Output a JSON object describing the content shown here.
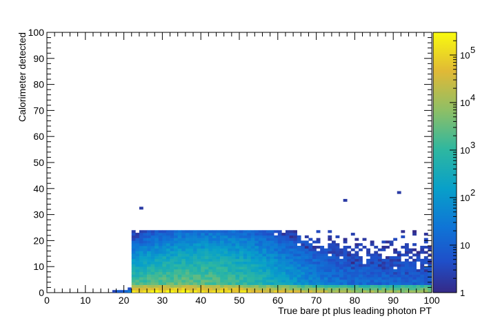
{
  "chart_data": {
    "type": "heatmap",
    "title": "",
    "xlabel": "True bare pt plus leading photon PT",
    "ylabel": "Calorimeter detected",
    "xlim": [
      0,
      100
    ],
    "ylim": [
      0,
      100
    ],
    "x_ticks": [
      "0",
      "10",
      "20",
      "30",
      "40",
      "50",
      "60",
      "70",
      "80",
      "90",
      "100"
    ],
    "y_ticks": [
      "0",
      "10",
      "20",
      "30",
      "40",
      "50",
      "60",
      "70",
      "80",
      "90",
      "100"
    ],
    "z_scale": "log",
    "z_range": [
      1,
      300000
    ],
    "colorbar_ticks": [
      {
        "value": 1,
        "base": "1",
        "exp": ""
      },
      {
        "value": 10,
        "base": "10",
        "exp": ""
      },
      {
        "value": 100,
        "base": "10",
        "exp": "2"
      },
      {
        "value": 1000,
        "base": "10",
        "exp": "3"
      },
      {
        "value": 10000,
        "base": "10",
        "exp": "4"
      },
      {
        "value": 100000,
        "base": "10",
        "exp": "5"
      }
    ],
    "bin_width": 1,
    "description_of_distribution": {
      "x_threshold": 22,
      "core_band_y_max": 3,
      "peak_x_range": [
        27,
        40
      ],
      "outliers": [
        [
          91,
          38.5
        ],
        [
          77,
          35.5
        ],
        [
          24,
          32.5
        ]
      ]
    }
  }
}
